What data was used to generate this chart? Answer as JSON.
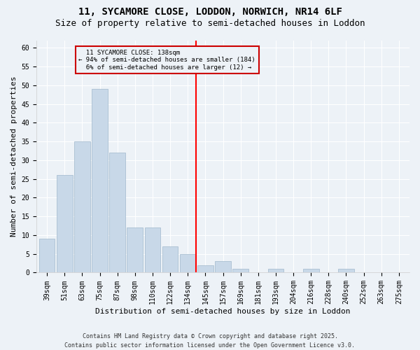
{
  "title": "11, SYCAMORE CLOSE, LODDON, NORWICH, NR14 6LF",
  "subtitle": "Size of property relative to semi-detached houses in Loddon",
  "xlabel": "Distribution of semi-detached houses by size in Loddon",
  "ylabel": "Number of semi-detached properties",
  "categories": [
    "39sqm",
    "51sqm",
    "63sqm",
    "75sqm",
    "87sqm",
    "98sqm",
    "110sqm",
    "122sqm",
    "134sqm",
    "145sqm",
    "157sqm",
    "169sqm",
    "181sqm",
    "193sqm",
    "204sqm",
    "216sqm",
    "228sqm",
    "240sqm",
    "252sqm",
    "263sqm",
    "275sqm"
  ],
  "values": [
    9,
    26,
    35,
    49,
    32,
    12,
    12,
    7,
    5,
    2,
    3,
    1,
    0,
    1,
    0,
    1,
    0,
    1,
    0,
    0,
    0
  ],
  "bar_color": "#c8d8e8",
  "bar_edge_color": "#a0b8cc",
  "vline_idx": 8,
  "vline_label": "11 SYCAMORE CLOSE: 138sqm",
  "smaller_pct": "94%",
  "smaller_count": 184,
  "larger_pct": "6%",
  "larger_count": 12,
  "annotation_box_color": "#cc0000",
  "ylim": [
    0,
    62
  ],
  "yticks": [
    0,
    5,
    10,
    15,
    20,
    25,
    30,
    35,
    40,
    45,
    50,
    55,
    60
  ],
  "bg_color": "#edf2f7",
  "grid_color": "#ffffff",
  "footer": "Contains HM Land Registry data © Crown copyright and database right 2025.\nContains public sector information licensed under the Open Government Licence v3.0.",
  "title_fontsize": 10,
  "subtitle_fontsize": 9,
  "xlabel_fontsize": 8,
  "ylabel_fontsize": 8,
  "tick_fontsize": 7,
  "footer_fontsize": 6
}
